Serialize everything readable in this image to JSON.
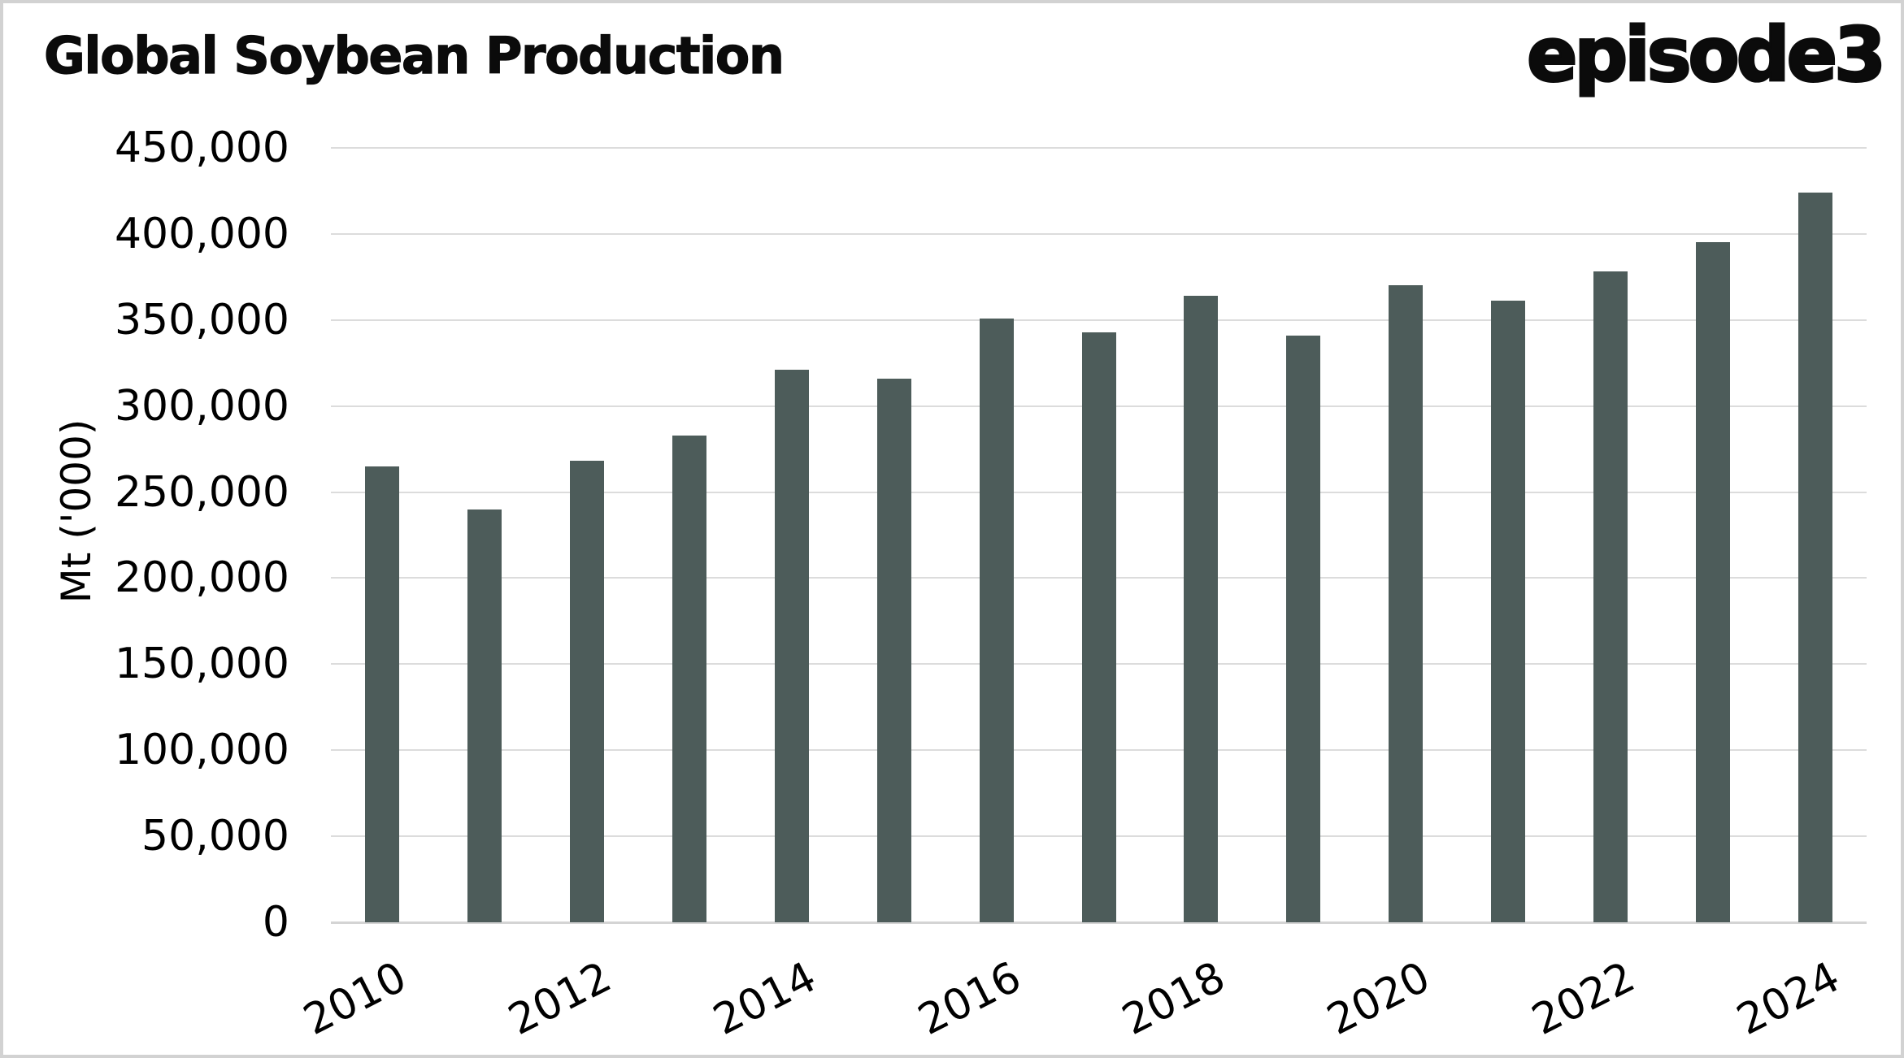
{
  "frame": {
    "background": "#ffffff",
    "border_color": "#d2d2d2"
  },
  "header": {
    "title": "Global Soybean Production",
    "logo_text": "episode3"
  },
  "chart_data": {
    "type": "bar",
    "title": "Global Soybean Production",
    "categories": [
      "2010",
      "2011",
      "2012",
      "2013",
      "2014",
      "2015",
      "2016",
      "2017",
      "2018",
      "2019",
      "2020",
      "2021",
      "2022",
      "2023",
      "2024"
    ],
    "values": [
      265000,
      240000,
      268000,
      283000,
      321000,
      316000,
      351000,
      343000,
      364000,
      341000,
      370000,
      361000,
      378000,
      395000,
      424000
    ],
    "xlabel": "",
    "ylabel": "Mt ('000)",
    "ylim": [
      0,
      450000
    ],
    "y_axis": {
      "label": "Mt ('000)",
      "min": 0,
      "max": 450000,
      "tick_step": 50000,
      "tick_labels": [
        "0",
        "50,000",
        "100,000",
        "150,000",
        "200,000",
        "250,000",
        "300,000",
        "350,000",
        "400,000",
        "450,000"
      ]
    },
    "x_axis": {
      "labeled_ticks": [
        "2010",
        "2012",
        "2014",
        "2016",
        "2018",
        "2020",
        "2022",
        "2024"
      ],
      "label_rotation_deg": 27
    },
    "grid": true,
    "legend": false,
    "bar_color": "#4d5c5a",
    "gridline_color": "#dcdcdc",
    "axis_line_color": "#d4d4d4",
    "text_color": "#000000"
  }
}
